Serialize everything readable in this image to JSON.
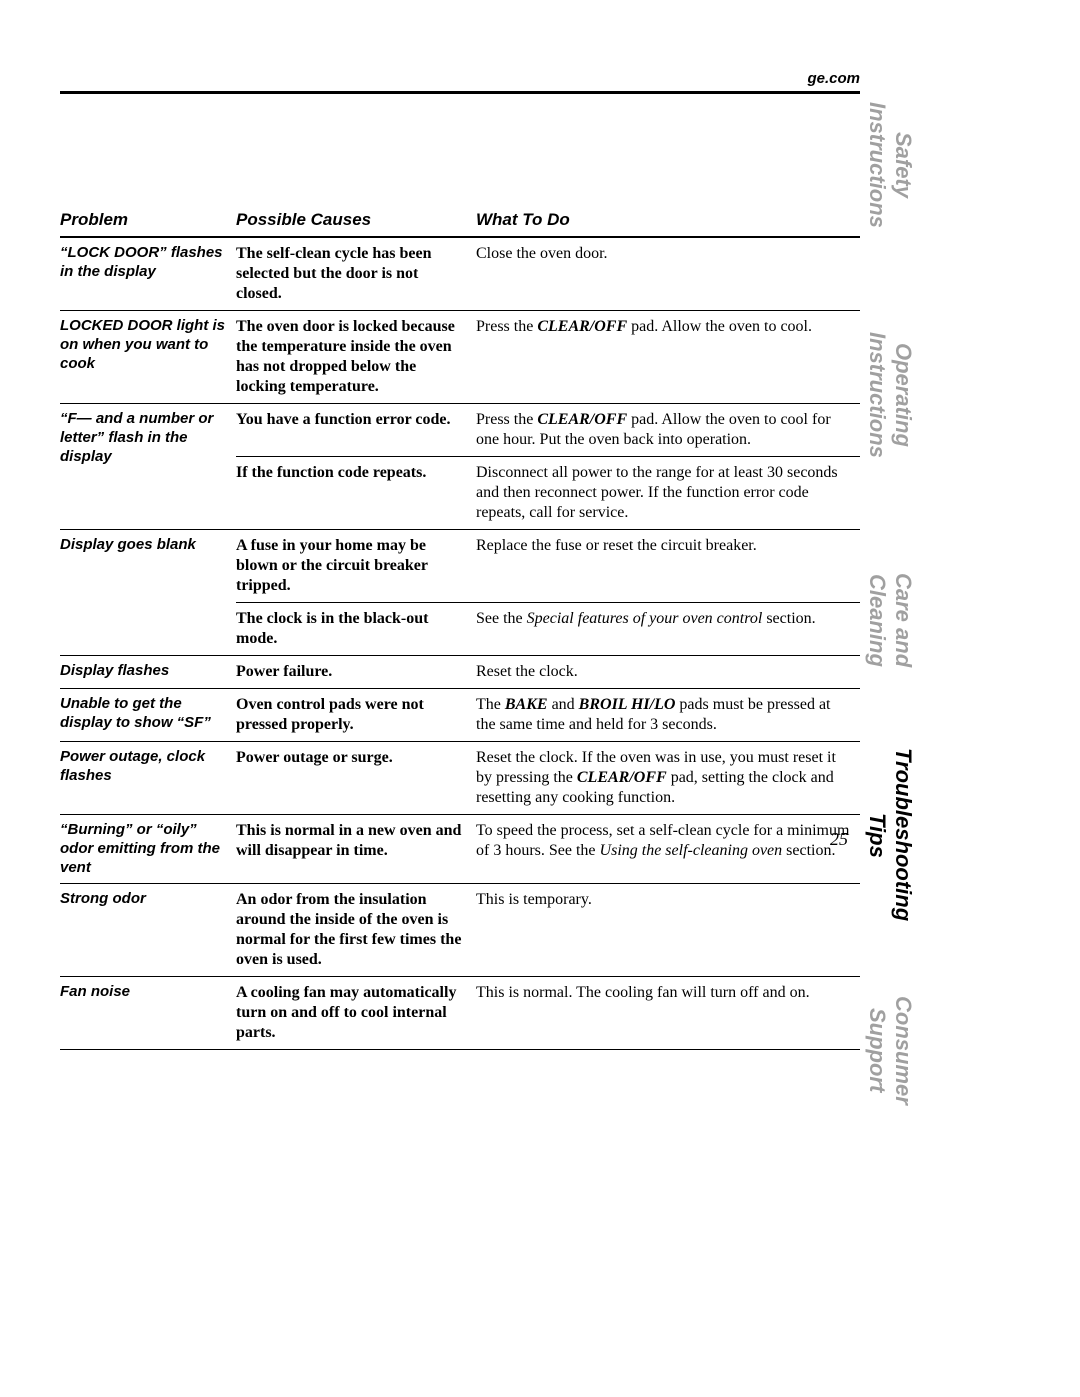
{
  "header": {
    "url": "ge.com"
  },
  "page_number": "25",
  "side_tabs": [
    {
      "label": "Safety Instructions",
      "active": false
    },
    {
      "label": "Operating Instructions",
      "active": false
    },
    {
      "label": "Care and Cleaning",
      "active": false
    },
    {
      "label": "Troubleshooting Tips",
      "active": true
    },
    {
      "label": "Consumer Support",
      "active": false
    }
  ],
  "table": {
    "columns": [
      "Problem",
      "Possible Causes",
      "What To Do"
    ],
    "col_widths_pct": [
      22,
      30,
      48
    ],
    "header_font": {
      "family": "Arial",
      "style": "bold-italic",
      "size_pt": 13
    },
    "problem_font": {
      "family": "Arial",
      "style": "bold-italic",
      "size_pt": 11
    },
    "cause_font": {
      "family": "Georgia",
      "style": "bold",
      "size_pt": 12
    },
    "todo_font": {
      "family": "Georgia",
      "style": "normal",
      "size_pt": 12
    },
    "border_color": "#000000",
    "rows": [
      {
        "problem": "“LOCK DOOR” flashes in the display",
        "cause": "The self-clean cycle has been selected but the door is not closed.",
        "todo_segments": [
          {
            "t": "Close the oven door.",
            "s": "normal"
          }
        ]
      },
      {
        "problem": "LOCKED DOOR light is on when you want to cook",
        "cause": "The oven door is locked because the temperature inside the oven has not dropped below the locking temperature.",
        "todo_segments": [
          {
            "t": "Press the ",
            "s": "normal"
          },
          {
            "t": "CLEAR/OFF",
            "s": "bolditalic"
          },
          {
            "t": " pad. Allow the oven to cool.",
            "s": "normal"
          }
        ]
      },
      {
        "problem": "“F— and a number or letter” flash in the display",
        "cause": "You have a function error code.",
        "todo_segments": [
          {
            "t": "Press the ",
            "s": "normal"
          },
          {
            "t": "CLEAR/OFF",
            "s": "bolditalic"
          },
          {
            "t": " pad. Allow the oven to cool for one hour. Put the oven back into operation.",
            "s": "normal"
          }
        ],
        "continues": true
      },
      {
        "problem": "",
        "cause": "If the function code repeats.",
        "todo_segments": [
          {
            "t": "Disconnect all power to the range for at least 30 seconds and then reconnect power. If the function error code repeats, call for service.",
            "s": "normal"
          }
        ]
      },
      {
        "problem": "Display goes blank",
        "cause": "A fuse in your home may be blown or the circuit breaker tripped.",
        "todo_segments": [
          {
            "t": "Replace the fuse or reset the circuit breaker.",
            "s": "normal"
          }
        ],
        "continues": true
      },
      {
        "problem": "",
        "cause": "The clock is in the black-out mode.",
        "todo_segments": [
          {
            "t": "See the ",
            "s": "normal"
          },
          {
            "t": "Special features of your oven control",
            "s": "italic"
          },
          {
            "t": " section.",
            "s": "normal"
          }
        ]
      },
      {
        "problem": "Display flashes",
        "cause": "Power failure.",
        "todo_segments": [
          {
            "t": "Reset the clock.",
            "s": "normal"
          }
        ]
      },
      {
        "problem": "Unable to get the display to show “SF”",
        "cause": "Oven control pads were not pressed properly.",
        "todo_segments": [
          {
            "t": "The ",
            "s": "normal"
          },
          {
            "t": "BAKE",
            "s": "bolditalic"
          },
          {
            "t": " and ",
            "s": "normal"
          },
          {
            "t": "BROIL HI/LO",
            "s": "bolditalic"
          },
          {
            "t": " pads must be pressed at the same time and held for 3 seconds.",
            "s": "normal"
          }
        ]
      },
      {
        "problem": "Power outage, clock flashes",
        "cause": "Power outage or surge.",
        "todo_segments": [
          {
            "t": "Reset the clock. If the oven was in use, you must reset it by pressing the ",
            "s": "normal"
          },
          {
            "t": "CLEAR/OFF",
            "s": "bolditalic"
          },
          {
            "t": " pad, setting the clock and resetting any cooking function.",
            "s": "normal"
          }
        ]
      },
      {
        "problem": "“Burning” or “oily” odor emitting from the vent",
        "cause": "This is normal in a new oven and will disappear in time.",
        "todo_segments": [
          {
            "t": "To speed the process, set a self-clean cycle for a minimum of 3 hours. See the ",
            "s": "normal"
          },
          {
            "t": "Using the self-cleaning oven",
            "s": "italic"
          },
          {
            "t": " section.",
            "s": "normal"
          }
        ]
      },
      {
        "problem": "Strong odor",
        "cause": "An odor from the insulation around the inside of the oven is normal for the first few times the oven is used.",
        "todo_segments": [
          {
            "t": "This is temporary.",
            "s": "normal"
          }
        ]
      },
      {
        "problem": "Fan noise",
        "cause": "A cooling fan may automatically turn on and off to cool internal parts.",
        "todo_segments": [
          {
            "t": "This is normal. The cooling fan will turn off and on.",
            "s": "normal"
          }
        ]
      }
    ]
  },
  "colors": {
    "text": "#000000",
    "inactive_tab": "#a0a0a0",
    "active_tab": "#000000",
    "background": "#ffffff",
    "rule": "#000000"
  }
}
